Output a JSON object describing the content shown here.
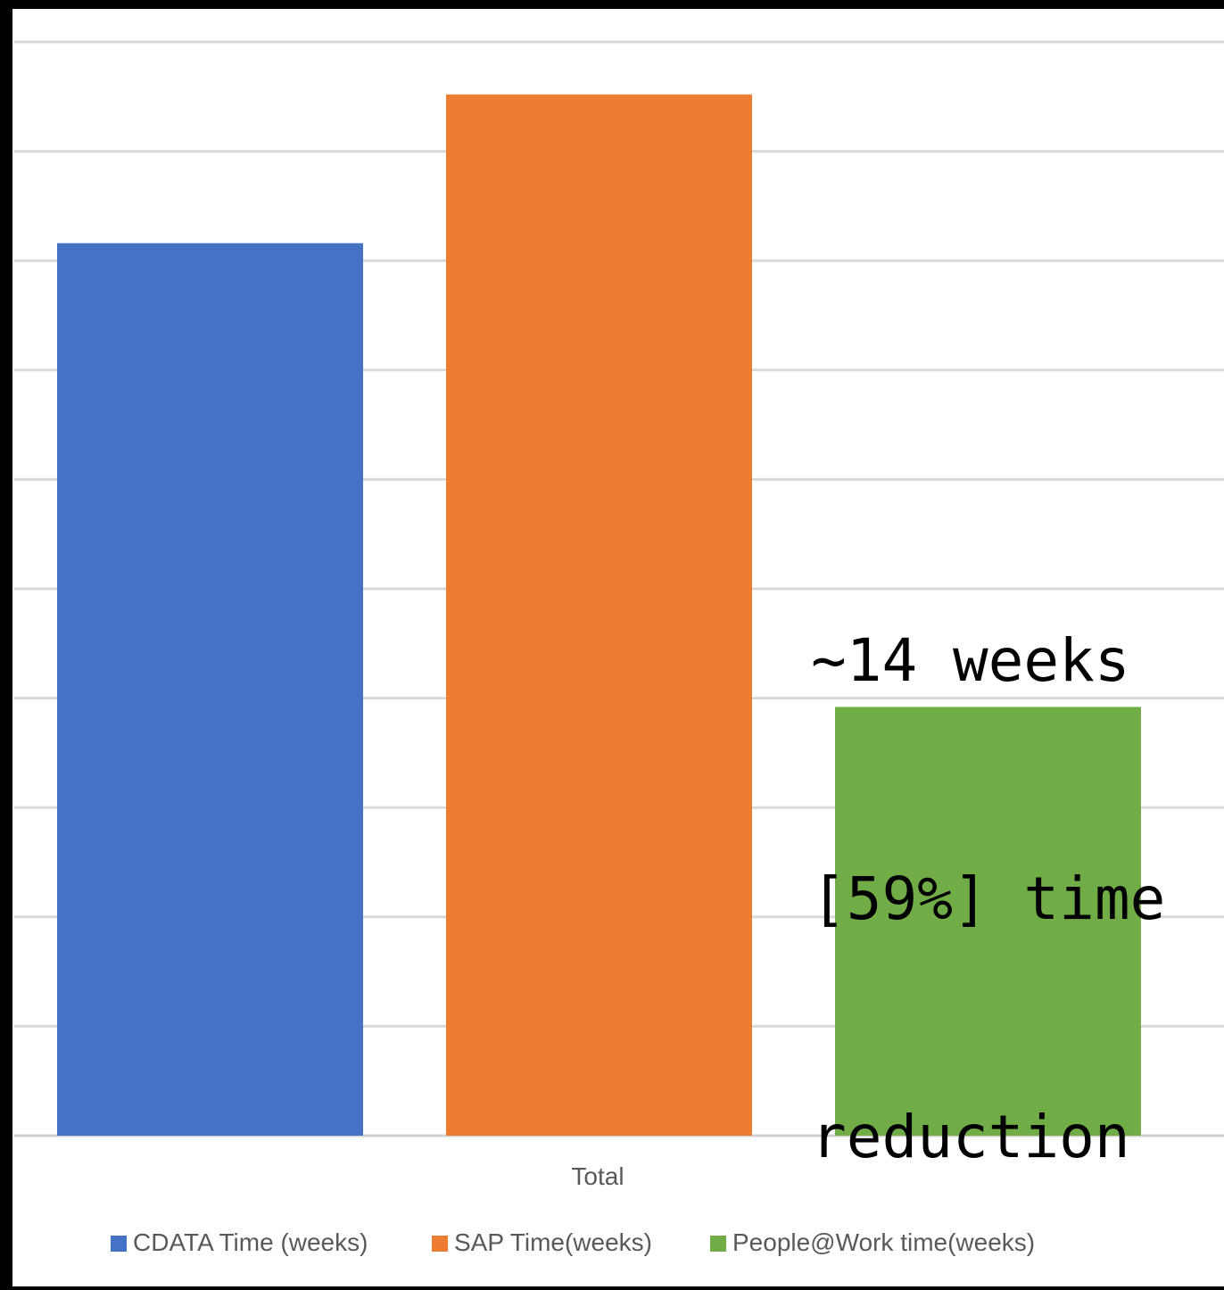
{
  "chart_data": {
    "type": "bar",
    "categories": [
      "Total"
    ],
    "series": [
      {
        "name": "CDATA Time (weeks)",
        "values": [
          20.4
        ],
        "color": "#4472C4"
      },
      {
        "name": "SAP Time(weeks)",
        "values": [
          23.8
        ],
        "color": "#ED7D31"
      },
      {
        "name": "People@Work time(weeks)",
        "values": [
          9.8
        ],
        "color": "#70AD47"
      }
    ],
    "title": "",
    "xlabel": "",
    "ylabel": "",
    "ylim": [
      0,
      25
    ],
    "y_gridlines": [
      0,
      2.5,
      5,
      7.5,
      10,
      12.5,
      15,
      17.5,
      20,
      22.5,
      25
    ],
    "grid": true,
    "legend_position": "bottom",
    "annotation": {
      "lines": [
        "~14 weeks",
        "[59%] time",
        "reduction"
      ]
    }
  }
}
